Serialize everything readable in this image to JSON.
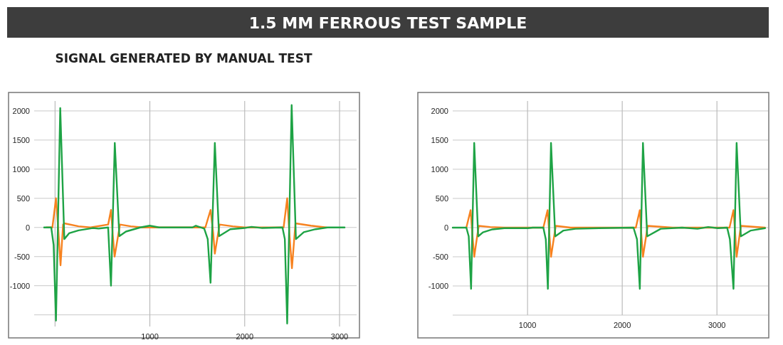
{
  "chart_data": [
    {
      "type": "line",
      "title": "1.5 MM FERROUS TEST SAMPLE",
      "subtitle": "SIGNAL GENERATED BY MANUAL TEST",
      "xlim": [
        -220,
        3180
      ],
      "ylim": [
        -1700,
        2170
      ],
      "xticks": [
        {
          "value": 0,
          "label": null
        },
        1000,
        2000,
        3000
      ],
      "yticks": [
        {
          "value": -1500,
          "label": null
        },
        -1000,
        -500,
        0,
        500,
        1000,
        1500,
        2000
      ],
      "grid": true,
      "series": [
        {
          "color": "#f7821f",
          "x": [
            -90,
            -28,
            10,
            35,
            58,
            85,
            98,
            248,
            373,
            560,
            590,
            610,
            628,
            685,
            798,
            923,
            1585,
            1640,
            1668,
            1685,
            1735,
            1873,
            1998,
            2410,
            2448,
            2473,
            2498,
            2535,
            2698,
            2860
          ],
          "values": [
            0,
            0,
            500,
            -50,
            -650,
            50,
            70,
            20,
            0,
            50,
            300,
            -150,
            -500,
            50,
            20,
            0,
            0,
            300,
            -100,
            -450,
            50,
            20,
            0,
            0,
            500,
            -150,
            -700,
            70,
            30,
            0
          ]
        },
        {
          "color": "#1ea345",
          "x": [
            -115,
            -40,
            -15,
            10,
            55,
            98,
            148,
            248,
            398,
            460,
            560,
            590,
            630,
            678,
            748,
            898,
            998,
            1098,
            1448,
            1485,
            1573,
            1610,
            1640,
            1685,
            1730,
            1848,
            1998,
            2073,
            2185,
            2398,
            2423,
            2448,
            2495,
            2540,
            2623,
            2748,
            2873,
            3053
          ],
          "values": [
            0,
            0,
            -300,
            -1600,
            2050,
            -200,
            -100,
            -50,
            -10,
            -20,
            0,
            -1000,
            1450,
            -150,
            -70,
            0,
            30,
            0,
            0,
            30,
            -20,
            -200,
            -950,
            1450,
            -150,
            -30,
            -10,
            10,
            -10,
            0,
            -200,
            -1650,
            2100,
            -200,
            -80,
            -30,
            0,
            0
          ]
        }
      ]
    },
    {
      "type": "line",
      "xlim": [
        210,
        3540
      ],
      "ylim": [
        -1500,
        2170
      ],
      "xticks": [
        1000,
        2000,
        3000
      ],
      "yticks": [
        {
          "value": -1500,
          "label": null
        },
        -1000,
        -500,
        0,
        500,
        1000,
        1500,
        2000
      ],
      "grid": true,
      "series": [
        {
          "color": "#f7821f",
          "x": [
            354,
            399,
            417,
            437,
            484,
            605,
            755,
            1167,
            1212,
            1230,
            1248,
            1298,
            1456,
            2144,
            2186,
            2201,
            2219,
            2269,
            2532,
            3133,
            3175,
            3193,
            3208,
            3253,
            3508
          ],
          "values": [
            0,
            300,
            -100,
            -500,
            30,
            10,
            0,
            0,
            300,
            -100,
            -500,
            30,
            0,
            0,
            300,
            -100,
            -500,
            30,
            0,
            0,
            300,
            -100,
            -500,
            30,
            0
          ]
        },
        {
          "color": "#1ea345",
          "x": [
            210,
            354,
            379,
            404,
            437,
            479,
            529,
            629,
            755,
            1005,
            1055,
            1167,
            1193,
            1215,
            1248,
            1293,
            1380,
            1506,
            1756,
            2119,
            2156,
            2186,
            2219,
            2264,
            2407,
            2632,
            2795,
            2908,
            3008,
            3108,
            3137,
            3175,
            3208,
            3253,
            3358,
            3508
          ],
          "values": [
            0,
            0,
            -150,
            -1050,
            1450,
            -150,
            -80,
            -30,
            -10,
            -10,
            0,
            0,
            -200,
            -1050,
            1450,
            -150,
            -50,
            -20,
            -10,
            0,
            -200,
            -1050,
            1450,
            -150,
            -20,
            0,
            -20,
            10,
            -10,
            0,
            -200,
            -1050,
            1450,
            -150,
            -50,
            -10
          ]
        }
      ]
    }
  ]
}
